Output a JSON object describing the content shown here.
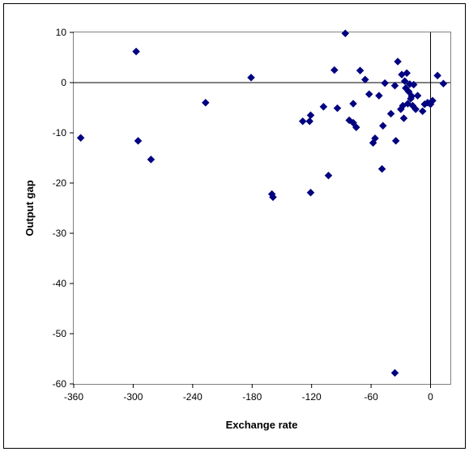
{
  "chart_data": {
    "type": "scatter",
    "title": "",
    "xlabel": "Exchange rate",
    "ylabel": "Output gap",
    "xlim": [
      -360,
      20
    ],
    "ylim": [
      -60,
      10
    ],
    "xticks": [
      -360,
      -300,
      -240,
      -180,
      -120,
      -60,
      0
    ],
    "yticks": [
      10,
      0,
      -10,
      -20,
      -30,
      -40,
      -50,
      -60
    ],
    "xtick_labels": [
      "-360",
      "-300",
      "-240",
      "-180",
      "-120",
      "-60",
      "0"
    ],
    "ytick_labels": [
      "10",
      "0",
      "-10",
      "-20",
      "-30",
      "-40",
      "-50",
      "-60"
    ],
    "grid": false,
    "legend": "none",
    "marker": "diamond",
    "marker_color": "#000080",
    "series": [
      {
        "points": [
          [
            -353,
            -11.0
          ],
          [
            -297,
            6.2
          ],
          [
            -295,
            -11.6
          ],
          [
            -282,
            -15.3
          ],
          [
            -227,
            -4.0
          ],
          [
            -181,
            1.0
          ],
          [
            -160,
            -22.2
          ],
          [
            -159,
            -22.8
          ],
          [
            -129,
            -7.7
          ],
          [
            -122,
            -7.7
          ],
          [
            -121,
            -6.5
          ],
          [
            -121,
            -21.9
          ],
          [
            -108,
            -4.8
          ],
          [
            -103,
            -18.5
          ],
          [
            -97,
            2.5
          ],
          [
            -94,
            -5.1
          ],
          [
            -86,
            9.8
          ],
          [
            -82,
            -7.5
          ],
          [
            -78,
            -4.2
          ],
          [
            -78,
            -8.0
          ],
          [
            -75,
            -8.9
          ],
          [
            -71,
            2.4
          ],
          [
            -66,
            0.6
          ],
          [
            -62,
            -2.3
          ],
          [
            -58,
            -12.0
          ],
          [
            -56,
            -11.1
          ],
          [
            -52,
            -2.6
          ],
          [
            -49,
            -17.2
          ],
          [
            -48,
            -8.6
          ],
          [
            -46,
            -0.1
          ],
          [
            -40,
            -6.2
          ],
          [
            -36,
            -0.6
          ],
          [
            -36,
            -57.8
          ],
          [
            -35,
            -11.6
          ],
          [
            -33,
            4.2
          ],
          [
            -30,
            -5.3
          ],
          [
            -29,
            1.6
          ],
          [
            -28,
            -4.6
          ],
          [
            -27,
            -7.1
          ],
          [
            -26,
            0.3
          ],
          [
            -25,
            -1.1
          ],
          [
            -24,
            1.9
          ],
          [
            -23,
            -4.2
          ],
          [
            -22,
            -1.8
          ],
          [
            -21,
            -0.3
          ],
          [
            -20,
            -3.2
          ],
          [
            -19,
            -2.7
          ],
          [
            -18,
            -4.6
          ],
          [
            -17,
            -0.4
          ],
          [
            -15,
            -5.3
          ],
          [
            -13,
            -2.6
          ],
          [
            -8,
            -5.7
          ],
          [
            -6,
            -4.3
          ],
          [
            -3,
            -4.0
          ],
          [
            0,
            -4.3
          ],
          [
            2,
            -3.6
          ],
          [
            7,
            1.4
          ],
          [
            13,
            -0.2
          ]
        ]
      }
    ]
  }
}
